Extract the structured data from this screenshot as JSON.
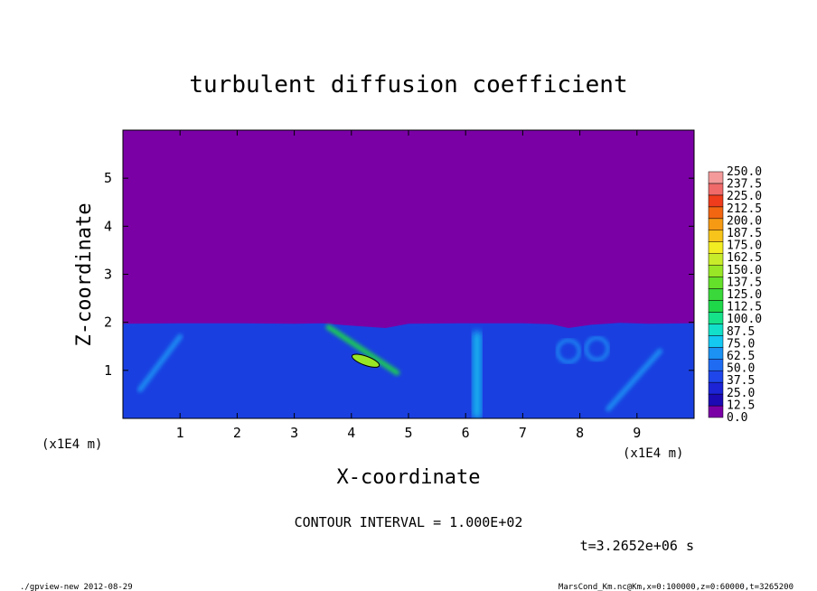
{
  "chart_data": {
    "type": "heatmap",
    "title": "turbulent diffusion coefficient",
    "xlabel": "X-coordinate",
    "ylabel": "Z-coordinate",
    "x_unit": "(x1E4 m)",
    "z_unit": "(x1E4 m)",
    "xlim": [
      0,
      10
    ],
    "zlim": [
      0,
      6
    ],
    "x_ticks": [
      "1",
      "2",
      "3",
      "4",
      "5",
      "6",
      "7",
      "8",
      "9"
    ],
    "z_ticks": [
      "1",
      "2",
      "3",
      "4",
      "5"
    ],
    "boundary_layer_top": [
      {
        "x": 0.0,
        "z": 1.97
      },
      {
        "x": 1.0,
        "z": 1.98
      },
      {
        "x": 2.0,
        "z": 1.98
      },
      {
        "x": 3.0,
        "z": 1.97
      },
      {
        "x": 3.5,
        "z": 1.98
      },
      {
        "x": 4.0,
        "z": 1.93
      },
      {
        "x": 4.6,
        "z": 1.88
      },
      {
        "x": 5.0,
        "z": 1.97
      },
      {
        "x": 6.0,
        "z": 1.98
      },
      {
        "x": 7.0,
        "z": 1.98
      },
      {
        "x": 7.5,
        "z": 1.96
      },
      {
        "x": 7.8,
        "z": 1.88
      },
      {
        "x": 8.2,
        "z": 1.95
      },
      {
        "x": 8.7,
        "z": 1.99
      },
      {
        "x": 9.2,
        "z": 1.97
      },
      {
        "x": 10.0,
        "z": 1.98
      }
    ],
    "above_layer_value": 0.0,
    "features": [
      {
        "type": "plume",
        "x": 6.2,
        "z_min": 0.0,
        "z_max": 1.8,
        "value": 75
      },
      {
        "type": "streak",
        "x0": 3.6,
        "z0": 1.9,
        "x1": 4.8,
        "z1": 0.95,
        "value": 112.5
      },
      {
        "type": "patch",
        "x": 4.25,
        "z": 1.2,
        "value": 150
      },
      {
        "type": "streak",
        "x0": 0.3,
        "z0": 0.6,
        "x1": 1.0,
        "z1": 1.7,
        "value": 62.5
      },
      {
        "type": "swirl",
        "x": 7.8,
        "z": 1.4,
        "value": 62.5
      },
      {
        "type": "swirl",
        "x": 8.3,
        "z": 1.45,
        "value": 62.5
      },
      {
        "type": "streak",
        "x0": 8.5,
        "z0": 0.2,
        "x1": 9.4,
        "z1": 1.4,
        "value": 62.5
      }
    ],
    "colorbar": {
      "levels": [
        "0.0",
        "12.5",
        "25.0",
        "37.5",
        "50.0",
        "62.5",
        "75.0",
        "87.5",
        "100.0",
        "112.5",
        "125.0",
        "137.5",
        "150.0",
        "162.5",
        "175.0",
        "187.5",
        "200.0",
        "212.5",
        "225.0",
        "237.5",
        "250.0"
      ],
      "colors": [
        "#7a00a6",
        "#1c0ab4",
        "#1c24d6",
        "#1e46ea",
        "#1f6cf2",
        "#1b92f4",
        "#14c8f2",
        "#12e0c8",
        "#16e28a",
        "#1ed84a",
        "#3ad83a",
        "#64e02a",
        "#98e626",
        "#c8ec2a",
        "#f2ec22",
        "#f6c41a",
        "#f69a14",
        "#f26612",
        "#ee3c1c",
        "#f06a6a",
        "#f49a9a"
      ]
    },
    "contour_interval_text": "CONTOUR INTERVAL = 1.000E+02",
    "time_text": "t=3.2652e+06 s"
  },
  "footer": {
    "left": "./gpview-new  2012-08-29",
    "right": "MarsCond_Km.nc@Km,x=0:100000,z=0:60000,t=3265200"
  },
  "colors": {
    "above_layer": "#7a00a6",
    "layer_base": "#1a3fe0"
  }
}
